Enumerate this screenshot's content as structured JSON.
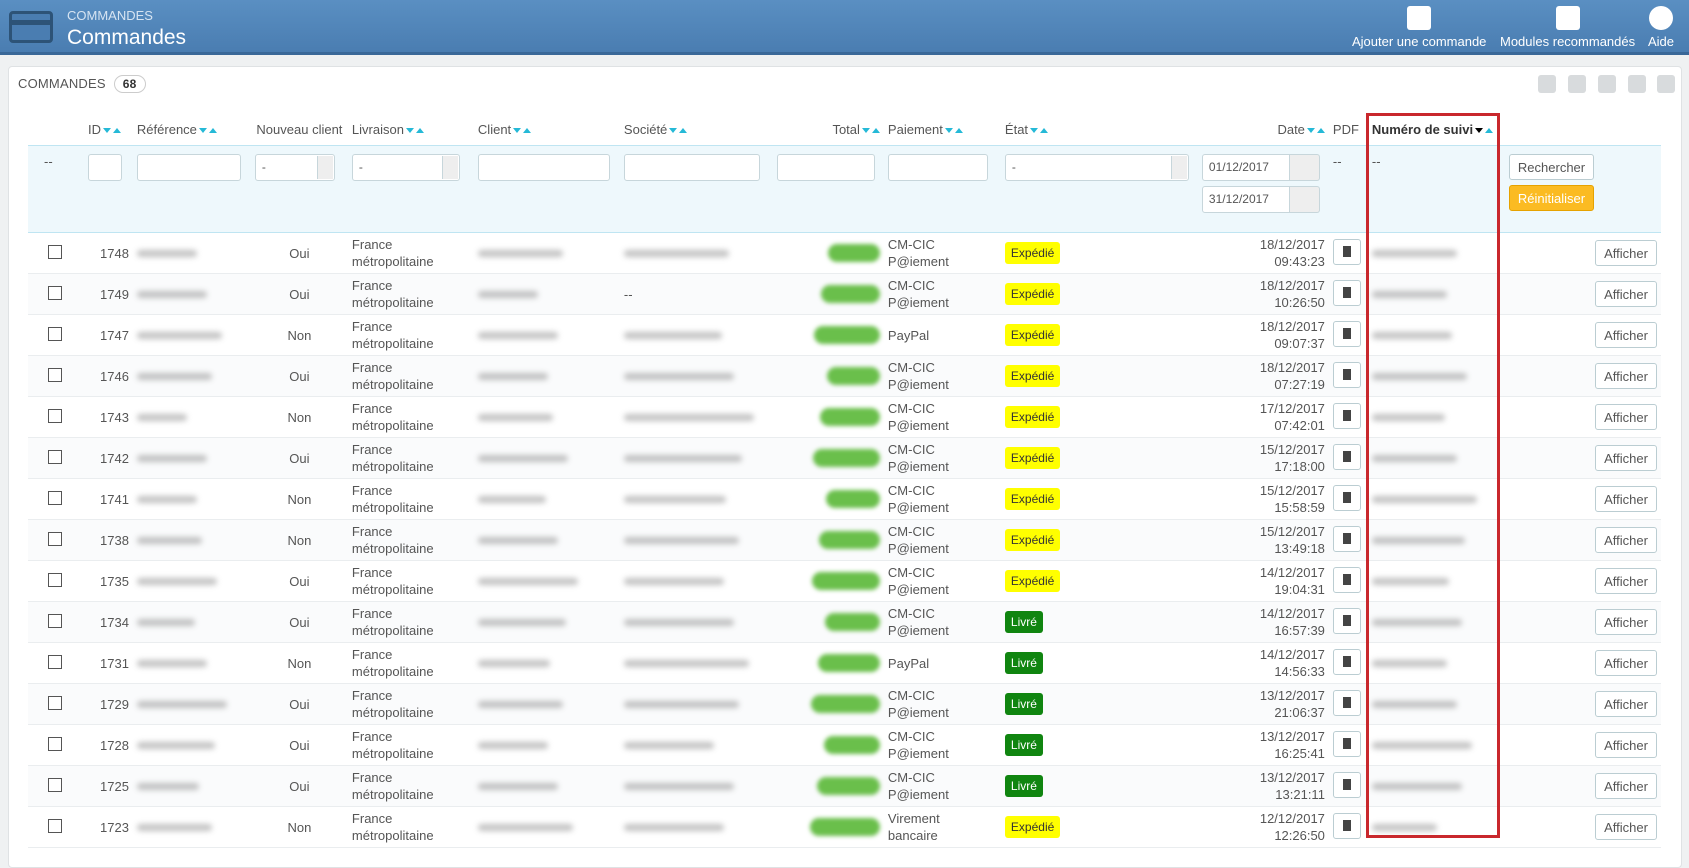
{
  "header": {
    "breadcrumb": "COMMANDES",
    "title": "Commandes",
    "actions": [
      "Ajouter une commande",
      "Modules recommandés",
      "Aide"
    ]
  },
  "panel": {
    "title": "COMMANDES",
    "count": 68,
    "columns": [
      {
        "label": "ID",
        "sortable": true
      },
      {
        "label": "Référence",
        "sortable": true
      },
      {
        "label": "Nouveau client",
        "sortable": false
      },
      {
        "label": "Livraison",
        "sortable": true
      },
      {
        "label": "Client",
        "sortable": true
      },
      {
        "label": "Société",
        "sortable": true
      },
      {
        "label": "Total",
        "sortable": true
      },
      {
        "label": "Paiement",
        "sortable": true
      },
      {
        "label": "État",
        "sortable": true
      },
      {
        "label": "Date",
        "sortable": true
      },
      {
        "label": "PDF",
        "sortable": false
      },
      {
        "label": "Numéro de suivi",
        "sortable": true,
        "active": true
      }
    ],
    "filters": {
      "checkbox": "--",
      "nouveau_client": "-",
      "livraison": "-",
      "etat": "-",
      "date_from": "01/12/2017",
      "date_to": "31/12/2017",
      "pdf": "--",
      "numero_suivi": "--",
      "search": "Rechercher",
      "reset": "Réinitialiser"
    },
    "view_label": "Afficher",
    "rows": [
      {
        "id": "1748",
        "nouveau_client": "Oui",
        "livraison": "France métropolitaine",
        "paiement": "CM-CIC P@iement",
        "etat": "Expédié",
        "etat_color": "#ffff00",
        "date": "18/12/2017",
        "time": "09:43:23"
      },
      {
        "id": "1749",
        "nouveau_client": "Oui",
        "livraison": "France métropolitaine",
        "societe": "--",
        "paiement": "CM-CIC P@iement",
        "etat": "Expédié",
        "etat_color": "#ffff00",
        "date": "18/12/2017",
        "time": "10:26:50"
      },
      {
        "id": "1747",
        "nouveau_client": "Non",
        "livraison": "France métropolitaine",
        "paiement": "PayPal",
        "etat": "Expédié",
        "etat_color": "#ffff00",
        "date": "18/12/2017",
        "time": "09:07:37"
      },
      {
        "id": "1746",
        "nouveau_client": "Oui",
        "livraison": "France métropolitaine",
        "paiement": "CM-CIC P@iement",
        "etat": "Expédié",
        "etat_color": "#ffff00",
        "date": "18/12/2017",
        "time": "07:27:19"
      },
      {
        "id": "1743",
        "nouveau_client": "Non",
        "livraison": "France métropolitaine",
        "paiement": "CM-CIC P@iement",
        "etat": "Expédié",
        "etat_color": "#ffff00",
        "date": "17/12/2017",
        "time": "07:42:01"
      },
      {
        "id": "1742",
        "nouveau_client": "Oui",
        "livraison": "France métropolitaine",
        "paiement": "CM-CIC P@iement",
        "etat": "Expédié",
        "etat_color": "#ffff00",
        "date": "15/12/2017",
        "time": "17:18:00"
      },
      {
        "id": "1741",
        "nouveau_client": "Non",
        "livraison": "France métropolitaine",
        "paiement": "CM-CIC P@iement",
        "etat": "Expédié",
        "etat_color": "#ffff00",
        "date": "15/12/2017",
        "time": "15:58:59"
      },
      {
        "id": "1738",
        "nouveau_client": "Non",
        "livraison": "France métropolitaine",
        "paiement": "CM-CIC P@iement",
        "etat": "Expédié",
        "etat_color": "#ffff00",
        "date": "15/12/2017",
        "time": "13:49:18"
      },
      {
        "id": "1735",
        "nouveau_client": "Oui",
        "livraison": "France métropolitaine",
        "paiement": "CM-CIC P@iement",
        "etat": "Expédié",
        "etat_color": "#ffff00",
        "date": "14/12/2017",
        "time": "19:04:31"
      },
      {
        "id": "1734",
        "nouveau_client": "Oui",
        "livraison": "France métropolitaine",
        "paiement": "CM-CIC P@iement",
        "etat": "Livré",
        "etat_color": "#108510",
        "date": "14/12/2017",
        "time": "16:57:39"
      },
      {
        "id": "1731",
        "nouveau_client": "Non",
        "livraison": "France métropolitaine",
        "paiement": "PayPal",
        "etat": "Livré",
        "etat_color": "#108510",
        "date": "14/12/2017",
        "time": "14:56:33"
      },
      {
        "id": "1729",
        "nouveau_client": "Oui",
        "livraison": "France métropolitaine",
        "paiement": "CM-CIC P@iement",
        "etat": "Livré",
        "etat_color": "#108510",
        "date": "13/12/2017",
        "time": "21:06:37"
      },
      {
        "id": "1728",
        "nouveau_client": "Oui",
        "livraison": "France métropolitaine",
        "paiement": "CM-CIC P@iement",
        "etat": "Livré",
        "etat_color": "#108510",
        "date": "13/12/2017",
        "time": "16:25:41"
      },
      {
        "id": "1725",
        "nouveau_client": "Oui",
        "livraison": "France métropolitaine",
        "paiement": "CM-CIC P@iement",
        "etat": "Livré",
        "etat_color": "#108510",
        "date": "13/12/2017",
        "time": "13:21:11"
      },
      {
        "id": "1723",
        "nouveau_client": "Non",
        "livraison": "France métropolitaine",
        "paiement": "Virement bancaire",
        "etat": "Expédié",
        "etat_color": "#ffff00",
        "date": "12/12/2017",
        "time": "12:26:50"
      }
    ]
  }
}
